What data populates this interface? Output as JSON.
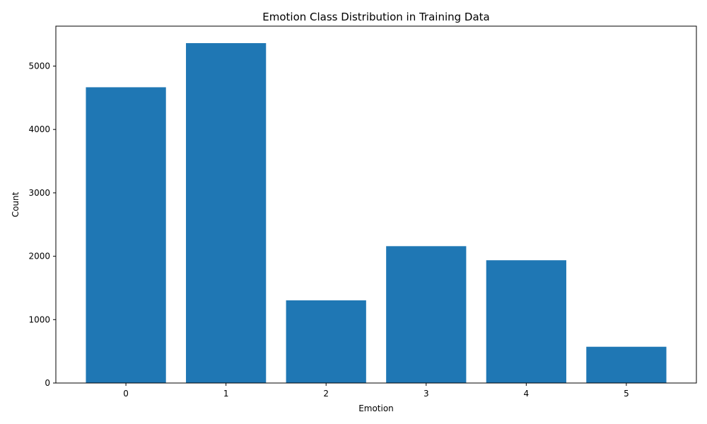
{
  "chart_data": {
    "type": "bar",
    "title": "Emotion Class Distribution in Training Data",
    "xlabel": "Emotion",
    "ylabel": "Count",
    "categories": [
      "0",
      "1",
      "2",
      "3",
      "4",
      "5"
    ],
    "values": [
      4666,
      5362,
      1304,
      2159,
      1937,
      572
    ],
    "ylim": [
      0,
      5630
    ],
    "yticks": [
      0,
      1000,
      2000,
      3000,
      4000,
      5000
    ],
    "bar_color": "#1f77b4",
    "grid": false,
    "legend": "none"
  }
}
